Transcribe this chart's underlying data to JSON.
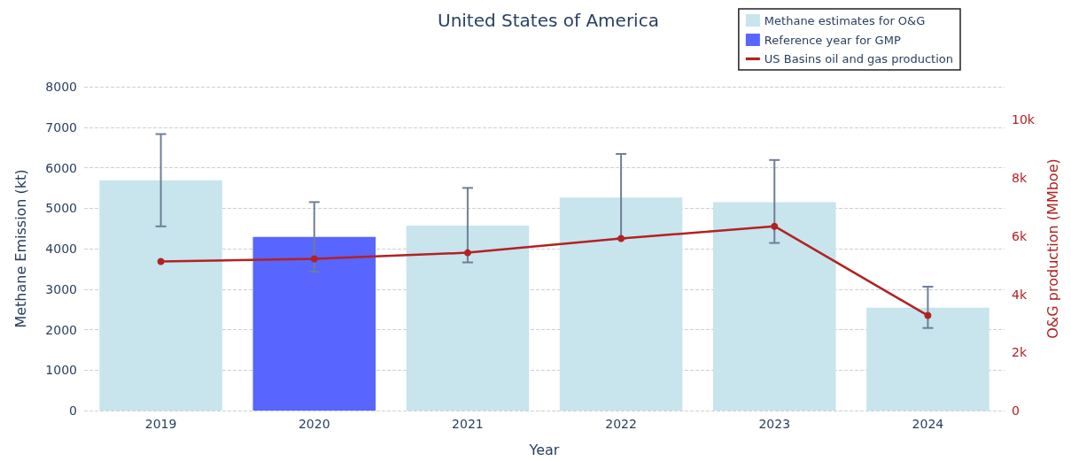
{
  "chart_data": {
    "type": "bar",
    "title": "United States of America",
    "xlabel": "Year",
    "ylabel": "Methane Emission (kt)",
    "y2label": "O&G production (MMboe)",
    "categories": [
      "2019",
      "2020",
      "2021",
      "2022",
      "2023",
      "2024"
    ],
    "series": [
      {
        "name": "Methane estimates for O&G",
        "color": "#c8e4ed",
        "values": [
          5690,
          null,
          4570,
          5260,
          5150,
          2540
        ],
        "errors": [
          [
            4550,
            6830
          ],
          null,
          [
            3660,
            5500
          ],
          [
            4250,
            6340
          ],
          [
            4140,
            6190
          ],
          [
            2040,
            3060
          ]
        ]
      },
      {
        "name": "Reference year for GMP",
        "color": "#5865ff",
        "values": [
          null,
          4290,
          null,
          null,
          null,
          null
        ],
        "errors": [
          null,
          [
            3430,
            5150
          ],
          null,
          null,
          null,
          null
        ]
      },
      {
        "name": "US Basins oil and gas production",
        "type": "line",
        "axis": "y2",
        "color": "#b22222",
        "marker": "circle",
        "values": [
          5130,
          5220,
          5430,
          5920,
          6340,
          3270
        ]
      }
    ],
    "ylim": [
      0,
      8000
    ],
    "yticks": [
      0,
      1000,
      2000,
      3000,
      4000,
      5000,
      6000,
      7000,
      8000
    ],
    "y2lim": [
      0,
      11140
    ],
    "y2ticks": [
      0,
      {
        "value": 2000,
        "label": "2k"
      },
      {
        "value": 4000,
        "label": "4k"
      },
      {
        "value": 6000,
        "label": "6k"
      },
      {
        "value": 8000,
        "label": "8k"
      },
      {
        "value": 10000,
        "label": "10k"
      }
    ],
    "grid": "y",
    "legend": "top right"
  }
}
